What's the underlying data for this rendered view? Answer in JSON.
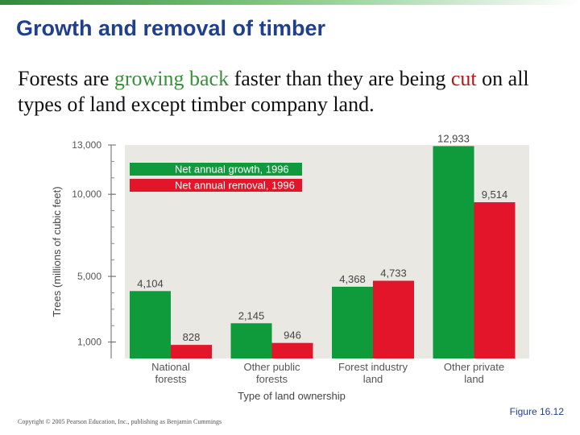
{
  "slide": {
    "title": "Growth and removal of timber",
    "text_parts": [
      {
        "text": "Forests are ",
        "style": "plain"
      },
      {
        "text": "growing back",
        "style": "green"
      },
      {
        "text": " faster than they are being ",
        "style": "plain"
      },
      {
        "text": "cut",
        "style": "red"
      },
      {
        "text": " on all types of land except timber company land.",
        "style": "plain"
      }
    ],
    "figure_label": "Figure 16.12",
    "copyright": "Copyright © 2005 Pearson Education, Inc., publishing as Benjamin Cummings"
  },
  "chart_data": {
    "type": "bar",
    "categories": [
      "National forests",
      "Other public forests",
      "Forest industry land",
      "Other private land"
    ],
    "series": [
      {
        "name": "Net annual growth, 1996",
        "values": [
          4104,
          2145,
          4368,
          12933
        ],
        "labels": [
          "4,104",
          "2,145",
          "4,368",
          "12,933"
        ],
        "color": "#0f9a3c"
      },
      {
        "name": "Net annual removal, 1996",
        "values": [
          828,
          946,
          4733,
          9514
        ],
        "labels": [
          "828",
          "946",
          "4,733",
          "9,514"
        ],
        "color": "#e3152b"
      }
    ],
    "xlabel": "Type of land ownership",
    "ylabel": "Trees (millions of cubic feet)",
    "ylim": [
      0,
      13000
    ],
    "yticks": [
      {
        "value": 1000,
        "label": "1,000"
      },
      {
        "value": 5000,
        "label": "5,000"
      },
      {
        "value": 10000,
        "label": "10,000"
      },
      {
        "value": 13000,
        "label": "13,000"
      }
    ],
    "legend_position": "top-left",
    "grid": false,
    "plot_background": "#eae8e2"
  }
}
